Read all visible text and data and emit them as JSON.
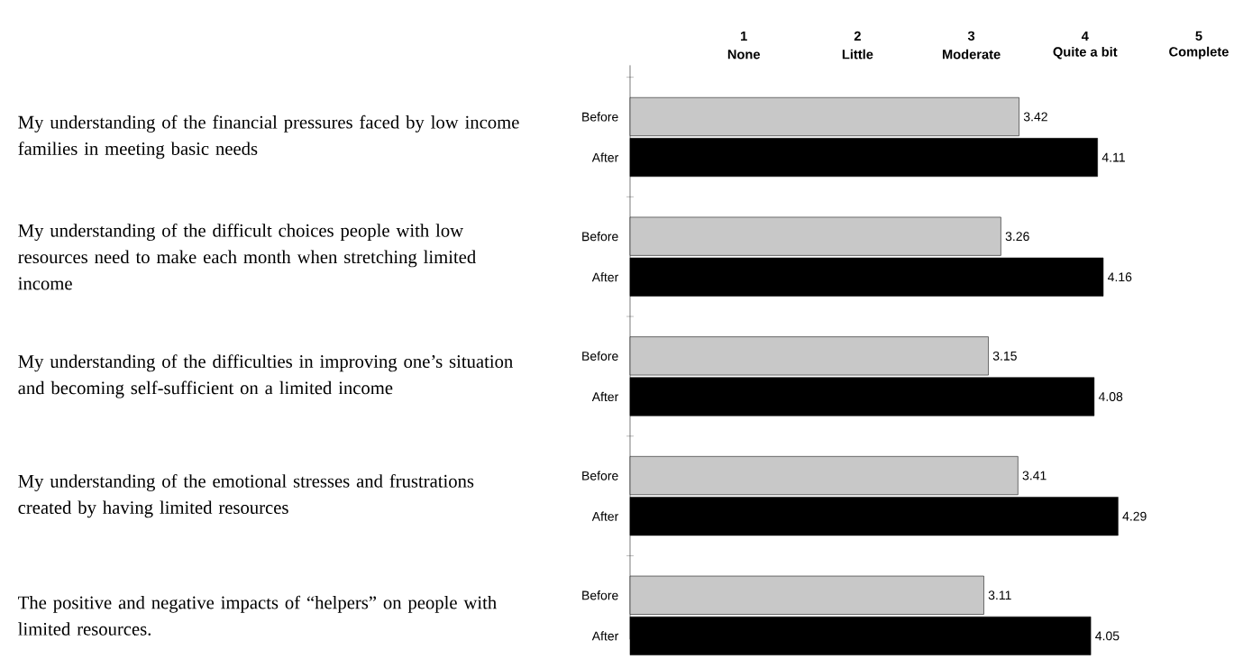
{
  "chart_data": {
    "type": "bar",
    "orientation": "horizontal",
    "categories": [
      "My understanding of the financial pressures faced by low income families in meeting basic needs",
      "My understanding of the difficult choices people with low resources need to make each month when stretching limited income",
      "My understanding of the difficulties in improving one’s situation and becoming self-sufficient on a limited income",
      "My understanding of the emotional stresses and frustrations created by having limited resources",
      "The positive and negative impacts of “helpers” on people with limited resources."
    ],
    "series": [
      {
        "name": "Before",
        "color": "#c8c8c8",
        "values": [
          3.42,
          3.26,
          3.15,
          3.41,
          3.11
        ]
      },
      {
        "name": "After",
        "color": "#000000",
        "values": [
          4.11,
          4.16,
          4.08,
          4.29,
          4.05
        ]
      }
    ],
    "xlim": [
      0,
      5
    ],
    "xticks": [
      1,
      2,
      3,
      4,
      5
    ],
    "annotations": [
      "None",
      "Little",
      "Moderate",
      "Quite a bit",
      "Complete"
    ],
    "data_labels": true
  }
}
